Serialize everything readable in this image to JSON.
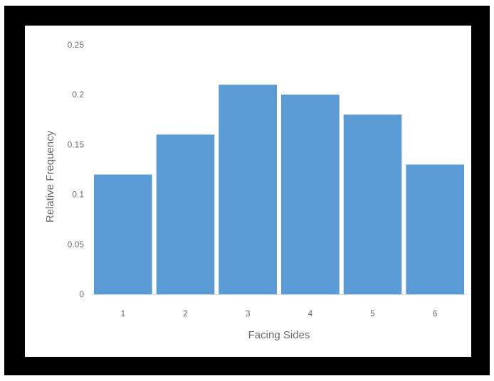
{
  "chart_data": {
    "type": "bar",
    "categories": [
      "1",
      "2",
      "3",
      "4",
      "5",
      "6"
    ],
    "values": [
      0.12,
      0.16,
      0.21,
      0.2,
      0.18,
      0.13
    ],
    "xlabel": "Facing Sides",
    "ylabel": "Relative Frequency",
    "ylim": [
      0,
      0.25
    ],
    "yticks": [
      "0",
      "0.05",
      "0.1",
      "0.15",
      "0.2",
      "0.25"
    ],
    "grid": false,
    "bar_color": "#5B9BD5",
    "frame_color": "#000000"
  }
}
